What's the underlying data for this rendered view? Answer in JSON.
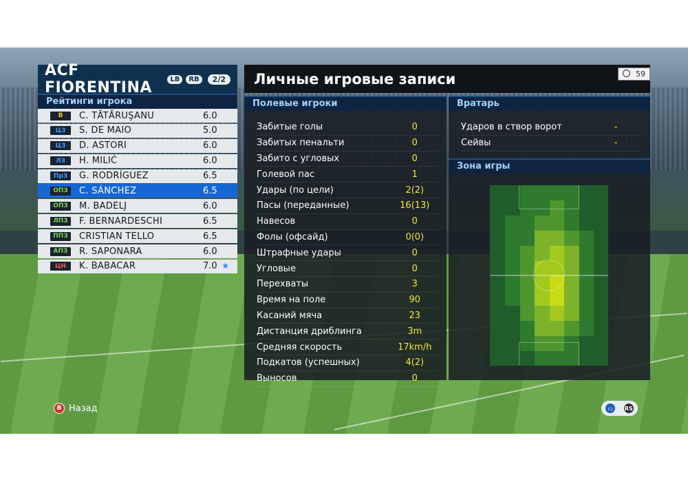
{
  "team": {
    "name": "ACF FIORENTINA",
    "badges": [
      "LB",
      "RB"
    ],
    "page": "2/2",
    "ratings_title": "Рейтинги игрока",
    "players": [
      {
        "pos": "В",
        "pos_color": "#f4c21c",
        "name": "C. TĂTĂRUŞANU",
        "rating": "6.0"
      },
      {
        "pos": "ЦЗ",
        "pos_color": "#3aa0ff",
        "name": "S. DE MAIO",
        "rating": "5.0"
      },
      {
        "pos": "ЦЗ",
        "pos_color": "#3aa0ff",
        "name": "D. ASTORI",
        "rating": "6.0"
      },
      {
        "pos": "ЛЗ",
        "pos_color": "#3aa0ff",
        "name": "H. MILIĆ",
        "rating": "6.0"
      },
      {
        "pos": "ПрЗ",
        "pos_color": "#3aa0ff",
        "name": "G. RODRÍGUEZ",
        "rating": "6.5"
      },
      {
        "pos": "ОПЗ",
        "pos_color": "#7bd65a",
        "name": "C. SÁNCHEZ",
        "rating": "6.5",
        "selected": true
      },
      {
        "pos": "ОПЗ",
        "pos_color": "#7bd65a",
        "name": "M. BADELJ",
        "rating": "6.0"
      },
      {
        "pos": "ЛПЗ",
        "pos_color": "#7bd65a",
        "name": "F. BERNARDESCHI",
        "rating": "6.5"
      },
      {
        "pos": "ППЗ",
        "pos_color": "#7bd65a",
        "name": "CRISTIAN TELLO",
        "rating": "6.5"
      },
      {
        "pos": "АПЗ",
        "pos_color": "#7bd65a",
        "name": "R. SAPONARA",
        "rating": "6.0"
      },
      {
        "pos": "ЦН",
        "pos_color": "#ff5a4a",
        "name": "K. BABACAR",
        "rating": "7.0",
        "star": true
      }
    ]
  },
  "main": {
    "title": "Личные игровые записи",
    "timer": "59",
    "field_players_title": "Полевые игроки",
    "stats": [
      {
        "label": "Забитые голы",
        "value": "0"
      },
      {
        "label": "Забитых пенальти",
        "value": "0"
      },
      {
        "label": "Забито с угловых",
        "value": "0"
      },
      {
        "label": "Голевой пас",
        "value": "1"
      },
      {
        "label": "Удары (по цели)",
        "value": "2(2)"
      },
      {
        "label": "Пасы (переданные)",
        "value": "16(13)"
      },
      {
        "label": "Навесов",
        "value": "0"
      },
      {
        "label": "Фолы (офсайд)",
        "value": "0(0)"
      },
      {
        "label": "Штрафные удары",
        "value": "0"
      },
      {
        "label": "Угловые",
        "value": "0"
      },
      {
        "label": "Перехваты",
        "value": "3"
      },
      {
        "label": "Время на поле",
        "value": "90"
      },
      {
        "label": "Касаний мяча",
        "value": "23"
      },
      {
        "label": "Дистанция дриблинга",
        "value": "3m"
      },
      {
        "label": "Средняя скорость",
        "value": "17km/h"
      },
      {
        "label": "Подкатов (успешных)",
        "value": "4(2)"
      },
      {
        "label": "Выносов",
        "value": "0"
      }
    ],
    "goalkeeper_title": "Вратарь",
    "gk_stats": [
      {
        "label": "Ударов в створ ворот",
        "value": "-"
      },
      {
        "label": "Сейвы",
        "value": "-"
      }
    ],
    "zone_title": "Зона игры"
  },
  "controls": {
    "back_label": "Назад",
    "back_key": "B",
    "chat_icon": "chat-icon",
    "rs_label": "RS"
  },
  "colors": {
    "panel_blue": "#10304f",
    "selected_row": "#1667d6",
    "stat_value": "#f4e83a"
  }
}
